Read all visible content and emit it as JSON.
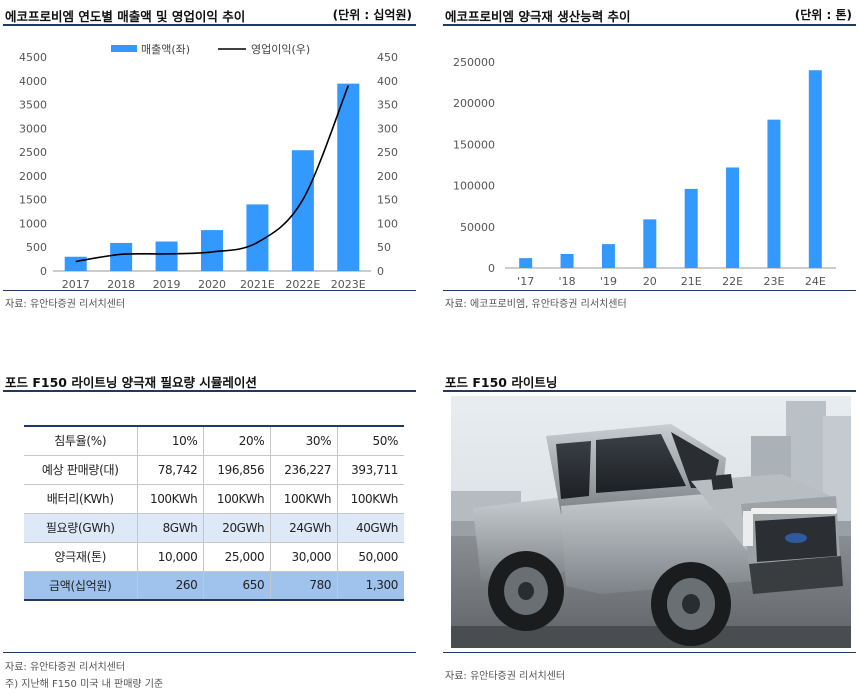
{
  "panels": {
    "revenue": {
      "title": "에코프로비엠 연도별 매출액 및 영업이익 추이",
      "unit": "(단위 : 십억원)",
      "source": "자료: 유안타증권 리서치센터"
    },
    "capacity": {
      "title": "에코프로비엠 양극재 생산능력 추이",
      "unit": "(단위 : 톤)",
      "source": "자료: 에코프로비엠, 유안타증권 리서치센터"
    },
    "simulation": {
      "title": "포드 F150 라이트닝 양극재 필요량 시뮬레이션",
      "source": "자료: 유안타증권 리서치센터",
      "note": "주) 지난해 F150 미국 내 판매량 기준"
    },
    "photo": {
      "title": "포드 F150 라이트닝",
      "source": "자료: 유안타증권 리서치센터"
    }
  },
  "chart_data": [
    {
      "type": "bar",
      "categories": [
        "2017",
        "2018",
        "2019",
        "2020",
        "2021E",
        "2022E",
        "2023E"
      ],
      "series": [
        {
          "name": "매출액(좌)",
          "type": "bar",
          "axis": "left",
          "values": [
            300,
            590,
            620,
            860,
            1400,
            2540,
            3940
          ],
          "color": "#3399ff"
        },
        {
          "name": "영업이익(우)",
          "type": "line",
          "axis": "right",
          "values": [
            20,
            35,
            36,
            40,
            60,
            150,
            390
          ],
          "color": "#000000"
        }
      ],
      "ylim": [
        0,
        4500
      ],
      "yticks": [
        0,
        500,
        1000,
        1500,
        2000,
        2500,
        3000,
        3500,
        4000,
        4500
      ],
      "y2lim": [
        0,
        450
      ],
      "y2ticks": [
        0,
        50,
        100,
        150,
        200,
        250,
        300,
        350,
        400,
        450
      ],
      "legend": "top-center"
    },
    {
      "type": "bar",
      "categories": [
        "'17",
        "'18",
        "'19",
        "20",
        "21E",
        "22E",
        "23E",
        "24E"
      ],
      "values": [
        12000,
        17000,
        29000,
        59000,
        96000,
        122000,
        180000,
        240000
      ],
      "ylim": [
        0,
        250000
      ],
      "yticks": [
        0,
        50000,
        100000,
        150000,
        200000,
        250000
      ],
      "color": "#3399ff"
    }
  ],
  "table": {
    "headers": [
      "침투율(%)",
      "10%",
      "20%",
      "30%",
      "50%"
    ],
    "rows": [
      {
        "label": "예상 판매량(대)",
        "values": [
          "78,742",
          "196,856",
          "236,227",
          "393,711"
        ]
      },
      {
        "label": "배터리(KWh)",
        "values": [
          "100KWh",
          "100KWh",
          "100KWh",
          "100KWh"
        ]
      },
      {
        "label": "필요량(GWh)",
        "values": [
          "8GWh",
          "20GWh",
          "24GWh",
          "40GWh"
        ]
      },
      {
        "label": "양극재(톤)",
        "values": [
          "10,000",
          "25,000",
          "30,000",
          "50,000"
        ]
      },
      {
        "label": "금액(십억원)",
        "values": [
          "260",
          "650",
          "780",
          "1,300"
        ]
      }
    ]
  }
}
